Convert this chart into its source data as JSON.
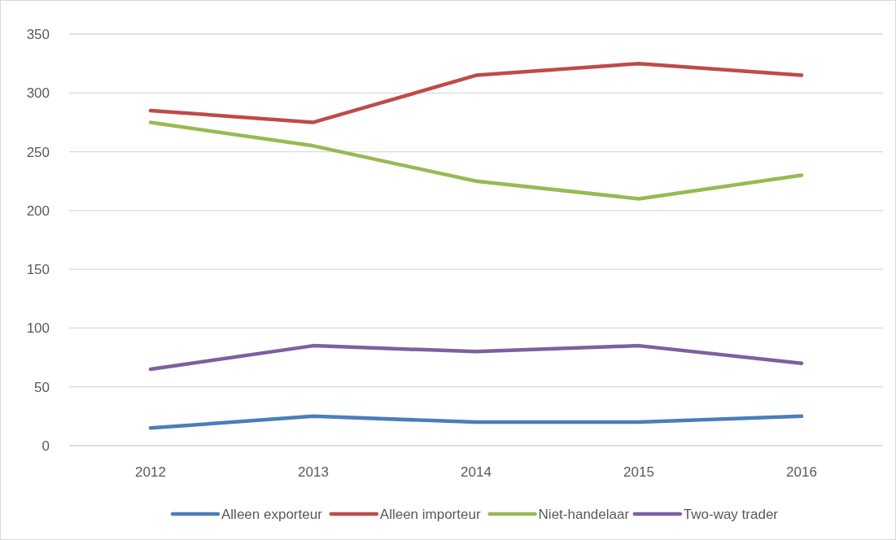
{
  "chart_data": {
    "type": "line",
    "categories": [
      "2012",
      "2013",
      "2014",
      "2015",
      "2016"
    ],
    "series": [
      {
        "name": "Alleen exporteur",
        "color": "#4a7ebb",
        "values": [
          15,
          25,
          20,
          20,
          25
        ]
      },
      {
        "name": "Alleen importeur",
        "color": "#be4b48",
        "values": [
          285,
          275,
          315,
          325,
          315
        ]
      },
      {
        "name": "Niet-handelaar",
        "color": "#98b954",
        "values": [
          275,
          255,
          225,
          210,
          230
        ]
      },
      {
        "name": "Two-way trader",
        "color": "#7d60a0",
        "values": [
          65,
          85,
          80,
          85,
          70
        ]
      }
    ],
    "ylim": [
      0,
      350
    ],
    "yticks": [
      0,
      50,
      100,
      150,
      200,
      250,
      300,
      350
    ],
    "grid": "y",
    "legend": "bottom",
    "marker": "none",
    "line_style": "solid"
  }
}
